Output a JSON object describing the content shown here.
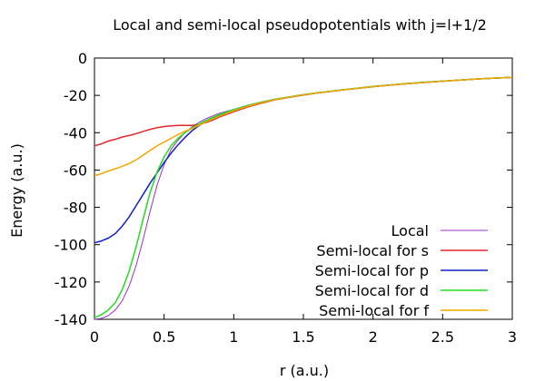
{
  "chart_data": {
    "type": "line",
    "title": "Local and semi-local pseudopotentials with j=l+1/2",
    "xlabel": "r (a.u.)",
    "ylabel": "Energy (a.u.)",
    "xlim": [
      0,
      3
    ],
    "ylim": [
      -140,
      0
    ],
    "xticks": [
      "0",
      "0.5",
      "1",
      "1.5",
      "2",
      "2.5",
      "3"
    ],
    "yticks": [
      "0",
      "-20",
      "-40",
      "-60",
      "-80",
      "-100",
      "-120",
      "-140"
    ],
    "grid": false,
    "legend_position": "bottom-right",
    "series": [
      {
        "name": "Local",
        "color": "#9b30c8",
        "x": [
          0,
          0.05,
          0.1,
          0.15,
          0.2,
          0.25,
          0.3,
          0.35,
          0.4,
          0.45,
          0.5,
          0.55,
          0.6,
          0.65,
          0.7,
          0.75,
          0.8,
          0.85,
          0.9,
          1.0,
          1.1,
          1.2,
          1.3,
          1.4,
          1.5,
          1.6,
          1.8,
          2.0,
          2.2,
          2.4,
          2.6,
          2.8,
          3.0
        ],
        "y": [
          -140,
          -139.5,
          -138,
          -135,
          -130,
          -122,
          -111,
          -97,
          -82,
          -68,
          -57,
          -49,
          -44,
          -40,
          -37,
          -34.5,
          -32.5,
          -31,
          -29.5,
          -27.5,
          -25.3,
          -23.5,
          -22,
          -20.8,
          -19.6,
          -18.6,
          -16.8,
          -15.2,
          -13.9,
          -12.8,
          -11.9,
          -11,
          -10.3
        ]
      },
      {
        "name": "Semi-local for s",
        "color": "#e0282c",
        "x": [
          0,
          0.05,
          0.1,
          0.15,
          0.2,
          0.25,
          0.3,
          0.35,
          0.4,
          0.45,
          0.5,
          0.55,
          0.6,
          0.65,
          0.7,
          0.75,
          0.8,
          0.85,
          0.9,
          1.0,
          1.1,
          1.2,
          1.3,
          1.4,
          1.5,
          1.6,
          1.8,
          2.0,
          2.2,
          2.4,
          2.6,
          2.8,
          3.0
        ],
        "y": [
          -47,
          -46,
          -44.5,
          -43.5,
          -42.3,
          -41.5,
          -40.5,
          -39.3,
          -38.2,
          -37.3,
          -36.7,
          -36.3,
          -36.1,
          -36.1,
          -36.1,
          -35.6,
          -34.6,
          -33.2,
          -31.5,
          -28.8,
          -26.2,
          -24.1,
          -22.3,
          -21,
          -19.8,
          -18.7,
          -16.9,
          -15.3,
          -14,
          -12.9,
          -11.9,
          -11,
          -10.3
        ]
      },
      {
        "name": "Semi-local for p",
        "color": "#1020c8",
        "x": [
          0,
          0.05,
          0.1,
          0.15,
          0.2,
          0.25,
          0.3,
          0.35,
          0.4,
          0.45,
          0.5,
          0.55,
          0.6,
          0.65,
          0.7,
          0.75,
          0.8,
          0.85,
          0.9,
          1.0,
          1.1,
          1.2,
          1.3,
          1.4,
          1.5,
          1.6,
          1.8,
          2.0,
          2.2,
          2.4,
          2.6,
          2.8,
          3.0
        ],
        "y": [
          -99,
          -98,
          -96.5,
          -94,
          -90,
          -85,
          -79,
          -73,
          -67,
          -61.5,
          -56,
          -51,
          -46.5,
          -42.5,
          -39,
          -36.2,
          -34,
          -32.3,
          -30.6,
          -28,
          -25.6,
          -23.7,
          -22.1,
          -20.9,
          -19.7,
          -18.7,
          -16.9,
          -15.3,
          -14,
          -12.9,
          -11.9,
          -11,
          -10.3
        ]
      },
      {
        "name": "Semi-local for d",
        "color": "#22dd22",
        "x": [
          0,
          0.05,
          0.1,
          0.15,
          0.2,
          0.25,
          0.3,
          0.35,
          0.4,
          0.45,
          0.5,
          0.55,
          0.6,
          0.65,
          0.7,
          0.75,
          0.8,
          0.85,
          0.9,
          1.0,
          1.1,
          1.2,
          1.3,
          1.4,
          1.5,
          1.6,
          1.8,
          2.0,
          2.2,
          2.4,
          2.6,
          2.8,
          3.0
        ],
        "y": [
          -139,
          -137.5,
          -135,
          -131,
          -124,
          -114,
          -101,
          -86,
          -72,
          -61,
          -53,
          -47,
          -43,
          -40,
          -37.5,
          -35.5,
          -33.5,
          -31.8,
          -30.2,
          -27.7,
          -25.4,
          -23.6,
          -22,
          -20.8,
          -19.6,
          -18.6,
          -16.8,
          -15.2,
          -13.9,
          -12.8,
          -11.9,
          -11,
          -10.3
        ]
      },
      {
        "name": "Semi-local for f",
        "color": "#f0a800",
        "x": [
          0,
          0.05,
          0.1,
          0.15,
          0.2,
          0.25,
          0.3,
          0.35,
          0.4,
          0.45,
          0.5,
          0.55,
          0.6,
          0.65,
          0.7,
          0.75,
          0.8,
          0.85,
          0.9,
          1.0,
          1.1,
          1.2,
          1.3,
          1.4,
          1.5,
          1.6,
          1.8,
          2.0,
          2.2,
          2.4,
          2.6,
          2.8,
          3.0
        ],
        "y": [
          -63,
          -62,
          -60.5,
          -59.3,
          -58,
          -56.5,
          -54.5,
          -52,
          -49.5,
          -47,
          -45,
          -43,
          -41,
          -39.3,
          -37.8,
          -36,
          -34.2,
          -32.6,
          -31,
          -28.3,
          -25.8,
          -23.8,
          -22.2,
          -20.9,
          -19.7,
          -18.7,
          -16.9,
          -15.3,
          -14,
          -12.9,
          -11.9,
          -11,
          -10.3
        ]
      }
    ]
  }
}
